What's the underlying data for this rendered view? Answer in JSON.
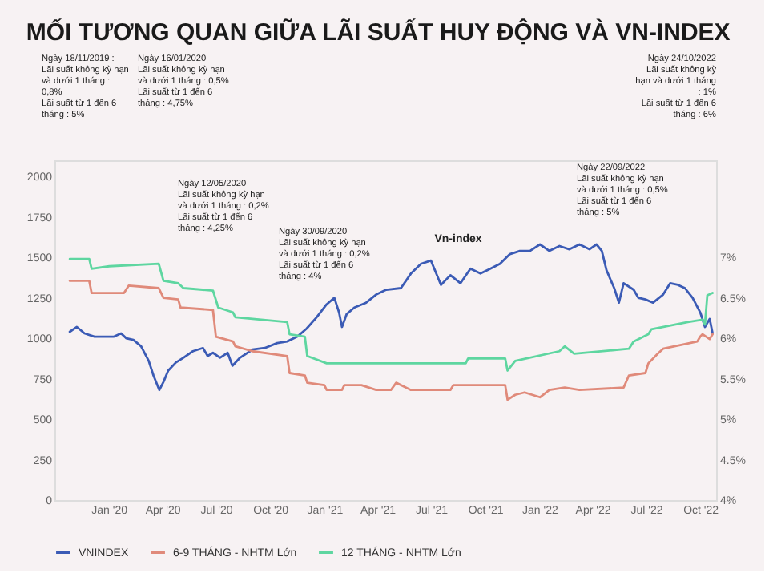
{
  "chart_data": {
    "type": "line",
    "title": "MỐI TƯƠNG QUAN GIỮA LÃI SUẤT HUY ĐỘNG VÀ VN-INDEX",
    "xlim": [
      "2019-10-01",
      "2022-10-28"
    ],
    "xticks": [
      {
        "value": "2020-01-01",
        "label": "Jan '20"
      },
      {
        "value": "2020-04-01",
        "label": "Apr '20"
      },
      {
        "value": "2020-07-01",
        "label": "Jul '20"
      },
      {
        "value": "2020-10-01",
        "label": "Oct '20"
      },
      {
        "value": "2021-01-01",
        "label": "Jan '21"
      },
      {
        "value": "2021-04-01",
        "label": "Apr '21"
      },
      {
        "value": "2021-07-01",
        "label": "Jul '21"
      },
      {
        "value": "2021-10-01",
        "label": "Oct '21"
      },
      {
        "value": "2022-01-01",
        "label": "Jan '22"
      },
      {
        "value": "2022-04-01",
        "label": "Apr '22"
      },
      {
        "value": "2022-07-01",
        "label": "Jul '22"
      },
      {
        "value": "2022-10-01",
        "label": "Oct '22"
      }
    ],
    "ylim": [
      0,
      2100
    ],
    "yticks": [
      0,
      250,
      500,
      750,
      1000,
      1250,
      1500,
      1750,
      2000
    ],
    "y2lim": [
      4,
      8.2
    ],
    "y2ticks": [
      {
        "value": 4,
        "label": "4%"
      },
      {
        "value": 4.5,
        "label": "4.5%"
      },
      {
        "value": 5,
        "label": "5%"
      },
      {
        "value": 5.5,
        "label": "5.5%"
      },
      {
        "value": 6,
        "label": "6%"
      },
      {
        "value": 6.5,
        "label": "6.5%"
      },
      {
        "value": 7,
        "label": "7%"
      }
    ],
    "grid": false,
    "legend": "bottom",
    "series": [
      {
        "name": "VNINDEX",
        "color": "#3b5bb5",
        "x": [
          "2019-10-27",
          "2019-11-08",
          "2019-11-21",
          "2019-12-08",
          "2019-12-24",
          "2020-01-10",
          "2020-01-22",
          "2020-01-31",
          "2020-02-12",
          "2020-02-25",
          "2020-03-09",
          "2020-03-17",
          "2020-03-27",
          "2020-04-03",
          "2020-04-11",
          "2020-04-24",
          "2020-05-07",
          "2020-05-23",
          "2020-06-09",
          "2020-06-17",
          "2020-06-26",
          "2020-07-08",
          "2020-07-21",
          "2020-07-29",
          "2020-08-11",
          "2020-09-01",
          "2020-09-22",
          "2020-10-13",
          "2020-10-30",
          "2020-11-16",
          "2020-12-02",
          "2020-12-19",
          "2021-01-05",
          "2021-01-18",
          "2021-01-26",
          "2021-01-31",
          "2021-02-08",
          "2021-02-21",
          "2021-03-13",
          "2021-03-30",
          "2021-04-16",
          "2021-05-11",
          "2021-05-28",
          "2021-06-14",
          "2021-07-01",
          "2021-07-18",
          "2021-08-03",
          "2021-08-20",
          "2021-09-06",
          "2021-09-23",
          "2021-10-10",
          "2021-10-26",
          "2021-11-12",
          "2021-11-29",
          "2021-12-16",
          "2022-01-02",
          "2022-01-18",
          "2022-02-04",
          "2022-02-21",
          "2022-03-10",
          "2022-03-27",
          "2022-04-08",
          "2022-04-17",
          "2022-04-25",
          "2022-05-08",
          "2022-05-16",
          "2022-05-24",
          "2022-06-10",
          "2022-06-18",
          "2022-06-30",
          "2022-07-13",
          "2022-07-30",
          "2022-08-11",
          "2022-08-24",
          "2022-09-05",
          "2022-09-18",
          "2022-10-01",
          "2022-10-09",
          "2022-10-17",
          "2022-10-22"
        ],
        "values": [
          1040,
          1070,
          1030,
          1010,
          1010,
          1010,
          1030,
          1000,
          990,
          950,
          860,
          770,
          680,
          730,
          800,
          850,
          880,
          920,
          940,
          890,
          910,
          880,
          910,
          830,
          880,
          930,
          940,
          970,
          980,
          1010,
          1060,
          1130,
          1210,
          1250,
          1160,
          1070,
          1150,
          1190,
          1220,
          1270,
          1300,
          1310,
          1400,
          1460,
          1480,
          1330,
          1390,
          1340,
          1430,
          1400,
          1430,
          1460,
          1520,
          1540,
          1540,
          1580,
          1540,
          1570,
          1550,
          1580,
          1550,
          1580,
          1540,
          1420,
          1310,
          1220,
          1340,
          1300,
          1250,
          1240,
          1220,
          1270,
          1340,
          1330,
          1310,
          1250,
          1160,
          1070,
          1120,
          1030
        ]
      },
      {
        "name": "6-9 THÁNG - NHTM Lớn",
        "color": "#e08a7a",
        "axis": "y2",
        "x": [
          "2019-10-27",
          "2019-11-29",
          "2019-12-03",
          "2020-01-27",
          "2020-02-04",
          "2020-03-26",
          "2020-04-03",
          "2020-04-28",
          "2020-05-02",
          "2020-06-26",
          "2020-07-01",
          "2020-07-30",
          "2020-08-03",
          "2020-09-01",
          "2020-10-30",
          "2020-11-03",
          "2020-11-29",
          "2020-12-03",
          "2021-01-01",
          "2021-01-05",
          "2021-01-31",
          "2021-02-04",
          "2021-03-05",
          "2021-03-30",
          "2021-04-24",
          "2021-05-03",
          "2021-05-28",
          "2021-08-03",
          "2021-08-08",
          "2021-11-04",
          "2021-11-08",
          "2021-11-21",
          "2021-12-07",
          "2022-01-02",
          "2022-01-18",
          "2022-02-13",
          "2022-03-10",
          "2022-05-24",
          "2022-06-02",
          "2022-06-30",
          "2022-07-05",
          "2022-07-21",
          "2022-07-30",
          "2022-09-26",
          "2022-10-01",
          "2022-10-05",
          "2022-10-17",
          "2022-10-22"
        ],
        "values": [
          6.71,
          6.71,
          6.56,
          6.56,
          6.65,
          6.62,
          6.5,
          6.48,
          6.38,
          6.35,
          6.02,
          5.96,
          5.9,
          5.84,
          5.78,
          5.57,
          5.54,
          5.45,
          5.42,
          5.36,
          5.36,
          5.42,
          5.42,
          5.36,
          5.36,
          5.45,
          5.36,
          5.36,
          5.42,
          5.42,
          5.24,
          5.3,
          5.33,
          5.27,
          5.36,
          5.39,
          5.36,
          5.39,
          5.54,
          5.57,
          5.69,
          5.81,
          5.87,
          5.96,
          6.02,
          6.05,
          5.99,
          6.05
        ]
      },
      {
        "name": "12 THÁNG - NHTM Lớn",
        "color": "#5ed6a0",
        "axis": "y2",
        "x": [
          "2019-10-27",
          "2019-11-29",
          "2019-12-03",
          "2020-01-02",
          "2020-03-26",
          "2020-04-03",
          "2020-04-28",
          "2020-05-07",
          "2020-06-26",
          "2020-07-05",
          "2020-07-30",
          "2020-08-03",
          "2020-10-30",
          "2020-11-03",
          "2020-11-29",
          "2020-12-03",
          "2021-01-05",
          "2021-05-11",
          "2021-08-29",
          "2021-09-02",
          "2021-11-04",
          "2021-11-08",
          "2021-11-21",
          "2022-02-04",
          "2022-02-13",
          "2022-03-01",
          "2022-06-02",
          "2022-06-10",
          "2022-07-05",
          "2022-07-10",
          "2022-09-10",
          "2022-10-05",
          "2022-10-09",
          "2022-10-13",
          "2022-10-22"
        ],
        "values": [
          6.98,
          6.98,
          6.86,
          6.89,
          6.92,
          6.71,
          6.68,
          6.62,
          6.59,
          6.38,
          6.32,
          6.26,
          6.2,
          6.05,
          6.02,
          5.78,
          5.69,
          5.69,
          5.69,
          5.75,
          5.75,
          5.6,
          5.72,
          5.84,
          5.9,
          5.81,
          5.87,
          5.96,
          6.05,
          6.11,
          6.2,
          6.23,
          6.17,
          6.53,
          6.56
        ]
      }
    ],
    "annotations": [
      "Ngày 18/11/2019 :\nLãi suất không kỳ hạn\nvà dưới 1 tháng :\n0,8%\nLãi suất từ 1 đến 6\ntháng : 5%",
      "Ngày 16/01/2020\nLãi suất không kỳ hạn\nvà dưới 1 tháng : 0,5%\nLãi suất từ 1 đến 6\ntháng : 4,75%",
      "Ngày 12/05/2020\nLãi suất không kỳ hạn\nvà dưới 1 tháng : 0,2%\nLãi suất từ 1 đến 6\ntháng : 4,25%",
      "Ngày 30/09/2020\nLãi suất không kỳ hạn\nvà dưới 1 tháng : 0,2%\nLãi suất từ 1 đến 6\ntháng : 4%",
      "Ngày 22/09/2022\nLãi suất không kỳ hạn\nvà dưới 1 tháng : 0,5%\nLãi suất từ 1 đến 6\ntháng : 5%",
      "Ngày 24/10/2022\nLãi suất không kỳ\nhạn và dưới 1 tháng\n: 1%\nLãi suất từ 1 đến 6\ntháng : 6%",
      "Vn-index"
    ]
  }
}
